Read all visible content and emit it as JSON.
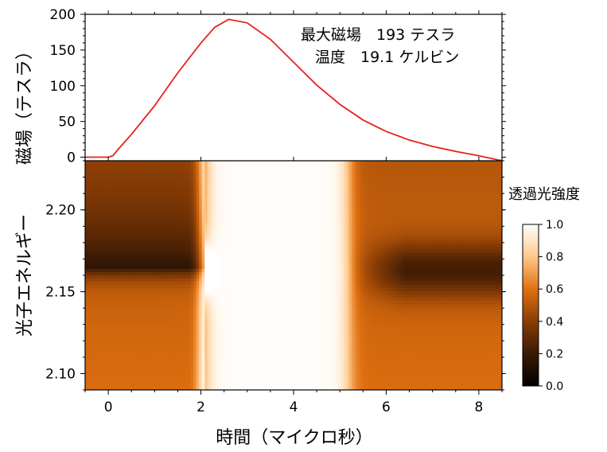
{
  "chart_data": [
    {
      "type": "line",
      "xlabel": "時間（マイクロ秒）",
      "ylabel": "磁場（テスラ）",
      "xlim": [
        -0.5,
        8.5
      ],
      "ylim": [
        -5,
        200
      ],
      "x_ticks": [
        0,
        2,
        4,
        6,
        8
      ],
      "y_ticks": [
        0,
        50,
        100,
        150,
        200
      ],
      "series_color": "#e8201c",
      "annotations": [
        "最大磁場　193 テスラ",
        "温度　19.1 ケルビン"
      ],
      "x": [
        -0.5,
        0.0,
        0.1,
        0.2,
        0.5,
        1.0,
        1.5,
        2.0,
        2.3,
        2.6,
        3.0,
        3.5,
        4.0,
        4.5,
        5.0,
        5.5,
        6.0,
        6.5,
        7.0,
        7.5,
        8.0,
        8.5
      ],
      "y": [
        0,
        0,
        2,
        10,
        32,
        72,
        118,
        160,
        182,
        193,
        188,
        165,
        133,
        101,
        74,
        52,
        36,
        24,
        15,
        8,
        2,
        -5
      ]
    },
    {
      "type": "heatmap",
      "xlabel": "時間（マイクロ秒）",
      "ylabel": "光子エネルギー",
      "xlim": [
        -0.5,
        8.5
      ],
      "ylim": [
        2.09,
        2.23
      ],
      "x_ticks": [
        0,
        2,
        4,
        6,
        8
      ],
      "y_ticks": [
        2.1,
        2.15,
        2.2
      ],
      "colorbar": {
        "title": "透過光強度",
        "range": [
          0.0,
          1.0
        ],
        "ticks": [
          "0.0",
          "0.2",
          "0.4",
          "0.6",
          "0.8",
          "1.0"
        ],
        "colors": [
          "#000000",
          "#3a1a05",
          "#8a3d05",
          "#e07010",
          "#ffc98a",
          "#ffffff"
        ]
      },
      "absorption_line_energy": 2.163,
      "transparent_window": [
        2.1,
        5.2
      ]
    }
  ],
  "icons": [
    "colorbar-gradient"
  ],
  "accent_colors": {
    "line": "#e8201c"
  }
}
